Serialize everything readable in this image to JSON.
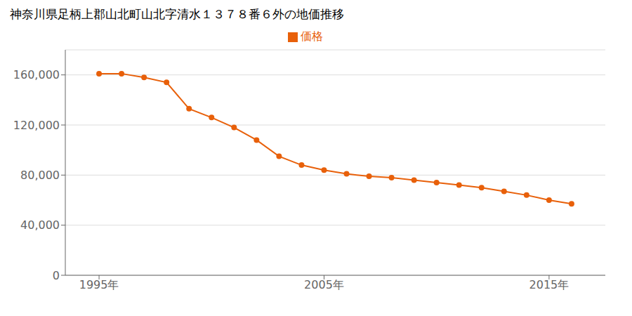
{
  "chart_data": {
    "type": "line",
    "title": "神奈川県足柄上郡山北町山北字清水１３７８番６外の地価推移",
    "x": [
      1995,
      1996,
      1997,
      1998,
      1999,
      2000,
      2001,
      2002,
      2003,
      2004,
      2005,
      2006,
      2007,
      2008,
      2009,
      2010,
      2011,
      2012,
      2013,
      2014,
      2015,
      2016
    ],
    "series": [
      {
        "name": "価格",
        "color": "#E8600A",
        "marker": "circle",
        "values": [
          161000,
          161000,
          158000,
          154000,
          133000,
          126000,
          118000,
          108000,
          95000,
          88000,
          84000,
          81000,
          79000,
          78000,
          76000,
          74000,
          72000,
          70000,
          67000,
          64000,
          60000,
          57000
        ]
      }
    ],
    "xlim": [
      1993.5,
      2017.5
    ],
    "xticks": [
      {
        "value": 1995,
        "label": "1995年"
      },
      {
        "value": 2005,
        "label": "2005年"
      },
      {
        "value": 2015,
        "label": "2015年"
      }
    ],
    "ylim": [
      0,
      180000
    ],
    "yticks": [
      0,
      {
        "value": 40000,
        "label": "40,000"
      },
      {
        "value": 80000,
        "label": "80,000"
      },
      {
        "value": 120000,
        "label": "120,000"
      },
      {
        "value": 160000,
        "label": "160,000"
      }
    ],
    "grid": "y",
    "legend": "top"
  }
}
